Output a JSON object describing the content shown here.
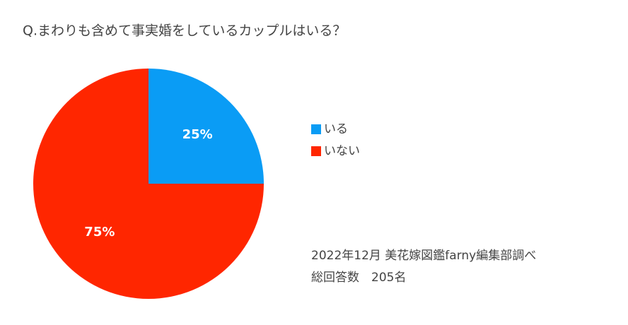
{
  "chart_data": {
    "type": "pie",
    "title": "Q.まわりも含めて事実婚をしているカップルはいる？",
    "categories": [
      "いる",
      "いない"
    ],
    "values": [
      25,
      75
    ],
    "value_labels": [
      "25%",
      "75%"
    ],
    "colors": [
      "#0a9cf5",
      "#ff2600"
    ],
    "legend": "right",
    "annotations": [
      "2022年12月 美花嫁図鑑farny編集部調べ",
      "総回答数　205名"
    ]
  }
}
